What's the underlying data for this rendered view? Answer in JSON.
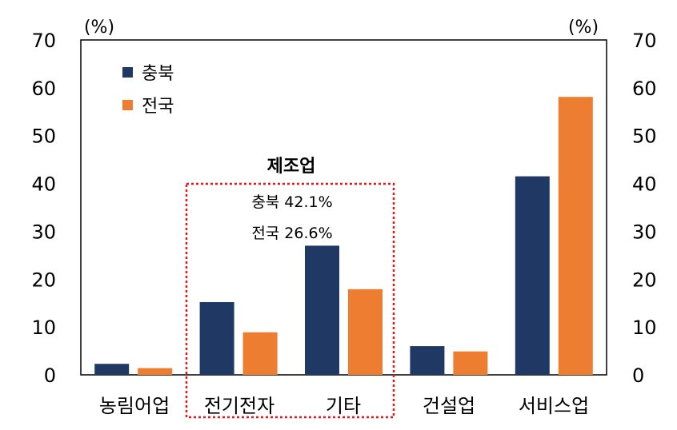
{
  "chart_data": {
    "type": "bar",
    "unit_left": "(%)",
    "unit_right": "(%)",
    "categories": [
      "농림어업",
      "전기전자",
      "기타",
      "건설업",
      "서비스업"
    ],
    "series": [
      {
        "name": "충북",
        "color": "#1f3864",
        "values": [
          2.3,
          15.2,
          27.0,
          6.0,
          41.5
        ]
      },
      {
        "name": "전국",
        "color": "#ed7d31",
        "values": [
          1.4,
          8.9,
          17.9,
          4.9,
          58.1
        ]
      }
    ],
    "yticks": [
      0,
      10,
      20,
      30,
      40,
      50,
      60,
      70
    ],
    "ylim": [
      0,
      70
    ],
    "legend_position": "top-left",
    "annotation": {
      "title": "제조업",
      "lines": [
        "충북 42.1%",
        "전국 26.6%"
      ],
      "color": "#e8161b"
    }
  }
}
